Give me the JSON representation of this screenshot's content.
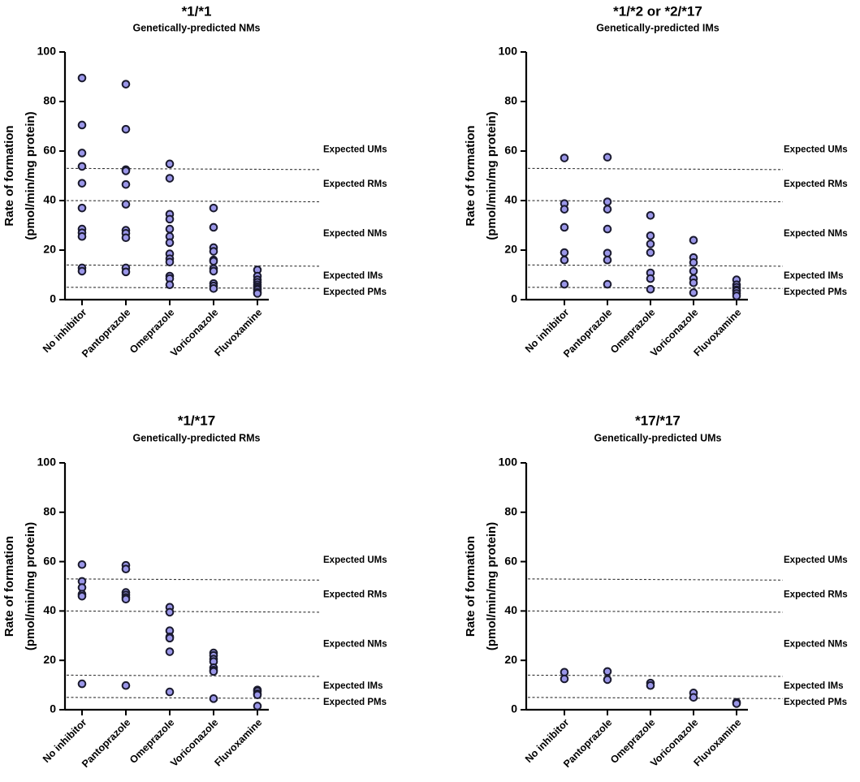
{
  "chart_data": [
    {
      "type": "scatter",
      "title": "*1/*1",
      "subtitle": "Genetically-predicted NMs",
      "ylabel_line1": "Rate of formation",
      "ylabel_line2": "(pmol/min/mg protein)",
      "ylim": [
        0,
        100
      ],
      "yticks": [
        0,
        20,
        40,
        60,
        80,
        100
      ],
      "categories": [
        "No inhibitor",
        "Pantoprazole",
        "Omeprazole",
        "Voriconazole",
        "Fluvoxamine"
      ],
      "values": [
        [
          89.5,
          70.5,
          59.2,
          53.8,
          47,
          37,
          28.5,
          27,
          25.5,
          12.8,
          11.5
        ],
        [
          87,
          68.8,
          52.5,
          52,
          46.5,
          38.5,
          28,
          26.8,
          25,
          12.8,
          11.2
        ],
        [
          54.8,
          49,
          34.5,
          32.5,
          28.5,
          25.5,
          23,
          18.5,
          16.5,
          15.2,
          9.5,
          8.5,
          6
        ],
        [
          37,
          29.2,
          21,
          19.5,
          16,
          15.5,
          12.5,
          11.5,
          6.5,
          5.5,
          4.5
        ],
        [
          12,
          9.5,
          8,
          7,
          6,
          5.2,
          4.5,
          4,
          3,
          2.5
        ]
      ],
      "thresholds": [
        {
          "value": 53,
          "label": "Expected UMs",
          "label_at": 60.5
        },
        {
          "value": 40,
          "label": "Expected RMs",
          "label_at": 46.5
        },
        {
          "value": 14,
          "label": "Expected NMs",
          "label_at": 26.5
        },
        {
          "value": 5,
          "label": "Expected IMs",
          "label_at": 9.5
        },
        {
          "value": 5,
          "label": "Expected PMs",
          "label_at": 3
        }
      ]
    },
    {
      "type": "scatter",
      "title": "*1/*2 or *2/*17",
      "subtitle": "Genetically-predicted IMs",
      "ylabel_line1": "Rate of formation",
      "ylabel_line2": "(pmol/min/mg protein)",
      "ylim": [
        0,
        100
      ],
      "yticks": [
        0,
        20,
        40,
        60,
        80,
        100
      ],
      "categories": [
        "No inhibitor",
        "Pantoprazole",
        "Omeprazole",
        "Voriconazole",
        "Fluvoxamine"
      ],
      "values": [
        [
          57.2,
          38.8,
          36.5,
          29.2,
          19,
          16,
          6.2
        ],
        [
          57.5,
          39.5,
          36.5,
          28.5,
          18.8,
          16,
          6.2
        ],
        [
          34,
          25.8,
          22.5,
          19,
          10.8,
          8.5,
          4.2
        ],
        [
          24,
          17,
          15,
          11.5,
          8.5,
          6.8,
          2.8
        ],
        [
          8,
          6,
          5,
          4,
          3.5,
          2.5,
          1.5
        ]
      ],
      "thresholds": [
        {
          "value": 53,
          "label": "Expected UMs",
          "label_at": 60.5
        },
        {
          "value": 40,
          "label": "Expected RMs",
          "label_at": 46.5
        },
        {
          "value": 14,
          "label": "Expected NMs",
          "label_at": 26.5
        },
        {
          "value": 5,
          "label": "Expected IMs",
          "label_at": 9.5
        },
        {
          "value": 5,
          "label": "Expected PMs",
          "label_at": 3
        }
      ]
    },
    {
      "type": "scatter",
      "title": "*1/*17",
      "subtitle": "Genetically-predicted RMs",
      "ylabel_line1": "Rate of formation",
      "ylabel_line2": "(pmol/min/mg protein)",
      "ylim": [
        0,
        100
      ],
      "yticks": [
        0,
        20,
        40,
        60,
        80,
        100
      ],
      "categories": [
        "No inhibitor",
        "Pantoprazole",
        "Omeprazole",
        "Voriconazole",
        "Fluvoxamine"
      ],
      "values": [
        [
          58.8,
          52,
          49.5,
          46.8,
          46,
          10.5
        ],
        [
          58.5,
          57,
          47.5,
          46.5,
          45.5,
          44.8,
          9.8
        ],
        [
          41.5,
          39.5,
          32,
          29.5,
          29,
          23.5,
          7.2
        ],
        [
          23,
          22,
          20.5,
          19.5,
          17,
          16,
          15.5,
          4.5
        ],
        [
          8,
          7.5,
          6.5,
          6,
          1.5
        ]
      ],
      "thresholds": [
        {
          "value": 53,
          "label": "Expected UMs",
          "label_at": 60.5
        },
        {
          "value": 40,
          "label": "Expected RMs",
          "label_at": 46.5
        },
        {
          "value": 14,
          "label": "Expected NMs",
          "label_at": 26.5
        },
        {
          "value": 5,
          "label": "Expected IMs",
          "label_at": 9.5
        },
        {
          "value": 5,
          "label": "Expected PMs",
          "label_at": 3
        }
      ]
    },
    {
      "type": "scatter",
      "title": "*17/*17",
      "subtitle": "Genetically-predicted UMs",
      "ylabel_line1": "Rate of formation",
      "ylabel_line2": "(pmol/min/mg protein)",
      "ylim": [
        0,
        100
      ],
      "yticks": [
        0,
        20,
        40,
        60,
        80,
        100
      ],
      "categories": [
        "No inhibitor",
        "Pantoprazole",
        "Omeprazole",
        "Voriconazole",
        "Fluvoxamine"
      ],
      "values": [
        [
          15.2,
          12.5
        ],
        [
          15.5,
          12.2
        ],
        [
          10.8,
          9.8
        ],
        [
          6.8,
          5
        ],
        [
          3,
          2.5
        ]
      ],
      "thresholds": [
        {
          "value": 53,
          "label": "Expected UMs",
          "label_at": 60.5
        },
        {
          "value": 40,
          "label": "Expected RMs",
          "label_at": 46.5
        },
        {
          "value": 14,
          "label": "Expected NMs",
          "label_at": 26.5
        },
        {
          "value": 5,
          "label": "Expected IMs",
          "label_at": 9.5
        },
        {
          "value": 5,
          "label": "Expected PMs",
          "label_at": 3
        }
      ]
    }
  ],
  "colors": {
    "marker_fill": "#9a96e8",
    "marker_stroke": "#1a1a2e",
    "axis": "#000000",
    "threshold": "#333333"
  }
}
